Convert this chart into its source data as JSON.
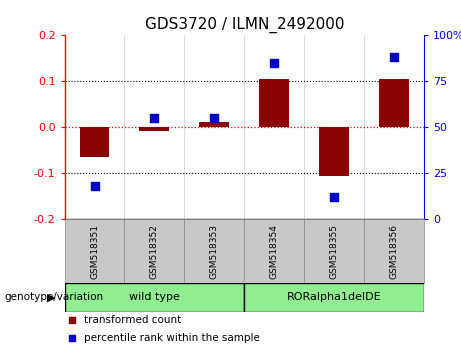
{
  "title": "GDS3720 / ILMN_2492000",
  "samples": [
    "GSM518351",
    "GSM518352",
    "GSM518353",
    "GSM518354",
    "GSM518355",
    "GSM518356"
  ],
  "red_values": [
    -0.065,
    -0.008,
    0.012,
    0.105,
    -0.105,
    0.105
  ],
  "blue_percentiles": [
    18,
    55,
    55,
    85,
    12,
    88
  ],
  "ylim": [
    -0.2,
    0.2
  ],
  "yticks_left": [
    -0.2,
    -0.1,
    0.0,
    0.1,
    0.2
  ],
  "yticks_right": [
    0,
    25,
    50,
    75,
    100
  ],
  "group_label_prefix": "genotype/variation",
  "group1_label": "wild type",
  "group2_label": "RORalpha1delDE",
  "group_color": "#90EE90",
  "legend_red": "transformed count",
  "legend_blue": "percentile rank within the sample",
  "red_color": "#8B0000",
  "blue_color": "#0000CC",
  "bar_width": 0.5,
  "title_fontsize": 11
}
